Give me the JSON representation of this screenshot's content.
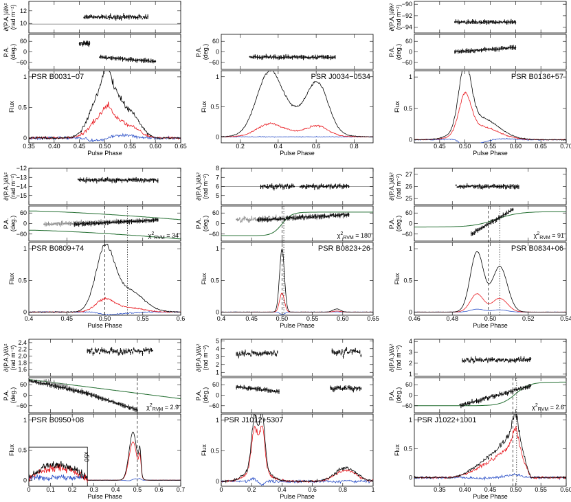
{
  "figure": {
    "x_axis_label": "Pulse Phase",
    "rm_axis_label": "∂(P.A.)/∂λ²",
    "rm_axis_units": "(rad m⁻²)",
    "pa_axis_label": "P.A. (deg.)",
    "flux_axis_label": "Flux",
    "chi2_label": "χ²RVM",
    "inset_scale_label": "x50"
  },
  "colors": {
    "total_intensity": "#000000",
    "linear_polarization": "#e8141a",
    "circular_polarization": "#2e52c8",
    "rvm_fit": "#1f6b2d",
    "pa_grey": "#8c8c8c",
    "reference_line": "#7a7a7a"
  },
  "chart_data": [
    {
      "type": "line",
      "pulsar": "PSR B0031−07",
      "xlim": [
        0.35,
        0.65
      ],
      "x_ticks": [
        "0.35",
        "0.40",
        "0.45",
        "0.50",
        "0.55",
        "0.60",
        "0.65"
      ],
      "rm": {
        "ylim": [
          8.5,
          13.5
        ],
        "y_ticks": [
          "10",
          "12"
        ],
        "reference": 9.9,
        "segments": [
          {
            "x": [
              0.459,
              0.585
            ],
            "y": 11.0,
            "noise": 0.18
          }
        ]
      },
      "pa": {
        "ylim": [
          -100,
          100
        ],
        "y_ticks": [
          "60",
          "0",
          "−60"
        ],
        "segments": [
          {
            "x": [
              0.45,
              0.47
            ],
            "y": [
              50,
              45
            ],
            "noise": 5
          },
          {
            "x": [
              0.49,
              0.6
            ],
            "y": [
              -30,
              -55
            ],
            "noise": 3
          }
        ]
      },
      "flux": {
        "ylim": [
          -0.08,
          1.1
        ],
        "y_ticks": [
          "0",
          "0.5",
          "1"
        ],
        "components": [
          {
            "mu": 0.49,
            "sigma": 0.02,
            "amp": 0.65
          },
          {
            "mu": 0.505,
            "sigma": 0.008,
            "amp": 0.35
          },
          {
            "mu": 0.525,
            "sigma": 0.02,
            "amp": 0.55
          },
          {
            "mu": 0.56,
            "sigma": 0.015,
            "amp": 0.25
          }
        ],
        "linear_fraction": 0.45,
        "circular_fraction": 0.08,
        "noise": 0.05
      },
      "chi2": ""
    },
    {
      "type": "line",
      "pulsar": "PSR J0034−0534",
      "xlim": [
        0.1,
        0.9
      ],
      "x_ticks": [
        "0.2",
        "0.4",
        "0.6",
        "0.8"
      ],
      "rm": null,
      "pa": {
        "ylim": [
          -100,
          100
        ],
        "y_ticks": [
          "60",
          "0",
          "−60"
        ],
        "segments": [
          {
            "x": [
              0.25,
              0.7
            ],
            "y": [
              -30,
              -30
            ],
            "noise": 4
          }
        ]
      },
      "flux": {
        "ylim": [
          -0.1,
          1.1
        ],
        "y_ticks": [
          "0",
          "0.5",
          "1"
        ],
        "components": [
          {
            "mu": 0.35,
            "sigma": 0.065,
            "amp": 0.9
          },
          {
            "mu": 0.61,
            "sigma": 0.055,
            "amp": 0.72
          },
          {
            "mu": 0.48,
            "sigma": 0.12,
            "amp": 0.35
          }
        ],
        "linear_fraction": 0.2,
        "circular_fraction": 0.0,
        "noise": 0.015
      },
      "chi2": ""
    },
    {
      "type": "line",
      "pulsar": "PSR B0136+57",
      "xlim": [
        0.4,
        0.7
      ],
      "x_ticks": [
        "0.45",
        "0.50",
        "0.55",
        "0.60",
        "0.65",
        "0.70"
      ],
      "rm": {
        "ylim": [
          -95,
          -89.5
        ],
        "y_ticks": [
          "−90",
          "−92",
          "−94"
        ],
        "segments": [
          {
            "x": [
              0.48,
              0.6
            ],
            "y": -93.1,
            "noise": 0.12
          }
        ]
      },
      "pa": {
        "ylim": [
          -100,
          100
        ],
        "y_ticks": [
          "60",
          "0",
          "−60"
        ],
        "segments": [
          {
            "x": [
              0.48,
              0.6
            ],
            "y": [
              0,
              25
            ],
            "noise": 4
          }
        ]
      },
      "flux": {
        "ylim": [
          -0.05,
          1.1
        ],
        "y_ticks": [
          "0",
          "0.5",
          "1"
        ],
        "components": [
          {
            "mu": 0.5,
            "sigma": 0.012,
            "amp": 1.0
          },
          {
            "mu": 0.53,
            "sigma": 0.035,
            "amp": 0.35
          }
        ],
        "linear_fraction": 0.6,
        "circular_fraction": 0.15,
        "noise": 0.02
      },
      "chi2": ""
    },
    {
      "type": "line",
      "pulsar": "PSR B0809+74",
      "xlim": [
        0.4,
        0.6
      ],
      "x_ticks": [
        "0.4",
        "0.45",
        "0.50",
        "0.55",
        "0.6"
      ],
      "rm": {
        "ylim": [
          -16,
          -12
        ],
        "y_ticks": [
          "−12",
          "−13",
          "−14",
          "−15"
        ],
        "segments": [
          {
            "x": [
              0.465,
              0.57
            ],
            "y": -13.3,
            "noise": 0.1
          }
        ]
      },
      "pa": {
        "ylim": [
          -100,
          100
        ],
        "y_ticks": [
          "60",
          "0",
          "−60"
        ],
        "segments": [
          {
            "x": [
              0.46,
              0.57
            ],
            "y": [
              -5,
              20
            ],
            "noise": 3
          }
        ],
        "rvm": {
          "curves": [
            {
              "y0": 72,
              "y1": 22
            },
            {
              "y0": -38,
              "y1": -88
            }
          ]
        },
        "markers": [
          0.5,
          0.53
        ]
      },
      "flux": {
        "ylim": [
          -0.05,
          1.1
        ],
        "y_ticks": [
          "0",
          "0.5",
          "1"
        ],
        "components": [
          {
            "mu": 0.5,
            "sigma": 0.012,
            "amp": 0.95
          },
          {
            "mu": 0.53,
            "sigma": 0.02,
            "amp": 0.35
          }
        ],
        "linear_fraction": 0.2,
        "circular_fraction": 0.05,
        "noise": 0.02
      },
      "chi2": "= 34"
    },
    {
      "type": "line",
      "pulsar": "PSR B0823+26",
      "xlim": [
        0.4,
        0.65
      ],
      "x_ticks": [
        "0.4",
        "0.45",
        "0.50",
        "0.55",
        "0.60",
        "0.65"
      ],
      "rm": {
        "ylim": [
          4,
          8
        ],
        "y_ticks": [
          "8",
          "7",
          "6",
          "5"
        ],
        "reference": 6.0,
        "segments": [
          {
            "x": [
              0.465,
              0.52
            ],
            "y": 6.0,
            "noise": 0.15
          },
          {
            "x": [
              0.53,
              0.61
            ],
            "y": 6.0,
            "noise": 0.15
          }
        ]
      },
      "pa": {
        "ylim": [
          -100,
          100
        ],
        "y_ticks": [
          "60",
          "0",
          "−60"
        ],
        "segments": [
          {
            "x": [
              0.46,
              0.61
            ],
            "y": [
              20,
              50
            ],
            "noise": 6
          }
        ],
        "rvm": {
          "center": 0.5,
          "width": 0.008,
          "lo": -70,
          "hi": 65
        },
        "markers": [
          0.5,
          0.503
        ]
      },
      "flux": {
        "ylim": [
          -0.05,
          1.1
        ],
        "y_ticks": [
          "0",
          "0.5",
          "1"
        ],
        "components": [
          {
            "mu": 0.5,
            "sigma": 0.004,
            "amp": 1.0
          },
          {
            "mu": 0.59,
            "sigma": 0.006,
            "amp": 0.05
          }
        ],
        "linear_fraction": 0.3,
        "circular_fraction": 0.05,
        "noise": 0.005
      },
      "chi2": "= 180"
    },
    {
      "type": "line",
      "pulsar": "PSR B0834+06",
      "xlim": [
        0.46,
        0.54
      ],
      "x_ticks": [
        "0.46",
        "0.48",
        "0.50",
        "0.52",
        "0.54"
      ],
      "rm": {
        "ylim": [
          24.5,
          27.5
        ],
        "y_ticks": [
          "27",
          "26",
          "25"
        ],
        "segments": [
          {
            "x": [
              0.482,
              0.515
            ],
            "y": 26.0,
            "noise": 0.06
          }
        ]
      },
      "pa": {
        "ylim": [
          -100,
          100
        ],
        "y_ticks": [
          "60",
          "0",
          "−60"
        ],
        "segments": [
          {
            "x": [
              0.49,
              0.512
            ],
            "y": [
              -60,
              80
            ],
            "noise": 4
          }
        ],
        "rvm": {
          "center": 0.503,
          "width": 0.006,
          "lo": -20,
          "hi": 68
        },
        "markers": [
          0.499,
          0.505
        ]
      },
      "flux": {
        "ylim": [
          -0.05,
          1.1
        ],
        "y_ticks": [
          "0",
          "0.5",
          "1"
        ],
        "components": [
          {
            "mu": 0.493,
            "sigma": 0.0035,
            "amp": 0.95
          },
          {
            "mu": 0.505,
            "sigma": 0.004,
            "amp": 0.72
          }
        ],
        "linear_fraction": 0.3,
        "circular_fraction": 0.05,
        "noise": 0.005
      },
      "chi2": "= 91"
    },
    {
      "type": "line",
      "pulsar": "PSR B0950+08",
      "xlim": [
        0,
        0.7
      ],
      "x_ticks": [
        "0",
        "0.1",
        "0.2",
        "0.3",
        "0.4",
        "0.5",
        "0.6",
        "0.7"
      ],
      "rm": {
        "ylim": [
          1.4,
          2.5
        ],
        "y_ticks": [
          "2.4",
          "2.2",
          "2.0",
          "1.8",
          "1.6"
        ],
        "segments": [
          {
            "x": [
              0.27,
              0.57
            ],
            "y": 2.15,
            "noise": 0.06
          }
        ]
      },
      "pa": {
        "ylim": [
          -100,
          100
        ],
        "y_ticks": [
          "60",
          "0",
          "−60"
        ],
        "segments": [
          {
            "x": [
              0.0,
              0.27
            ],
            "y": [
              85,
              10
            ],
            "noise": 5
          },
          {
            "x": [
              0.27,
              0.5
            ],
            "y": [
              10,
              -85
            ],
            "noise": 3
          }
        ],
        "rvm": {
          "linear": [
            [
              0.0,
              90
            ],
            [
              0.7,
              -20
            ]
          ]
        },
        "markers": [
          0.5
        ]
      },
      "flux": {
        "ylim": [
          -0.1,
          1.1
        ],
        "y_ticks": [
          "0",
          "0.5",
          "1"
        ],
        "components": [
          {
            "mu": 0.48,
            "sigma": 0.018,
            "amp": 0.8
          },
          {
            "mu": 0.512,
            "sigma": 0.005,
            "amp": 0.4
          }
        ],
        "linear_fraction": 0.8,
        "circular_fraction": 0.05,
        "noise": 0.004,
        "inset": {
          "x": [
            0.0,
            0.27
          ],
          "level": 0.3,
          "noise": 0.05
        }
      },
      "chi2": "= 2.9"
    },
    {
      "type": "line",
      "pulsar": "PSR J1012+5307",
      "xlim": [
        0,
        1
      ],
      "x_ticks": [
        "0",
        "0.2",
        "0.4",
        "0.6",
        "0.8",
        "1"
      ],
      "rm": {
        "ylim": [
          0.5,
          5.2
        ],
        "y_ticks": [
          "5",
          "4",
          "3",
          "2",
          "1"
        ],
        "segments": [
          {
            "x": [
              0.1,
              0.37
            ],
            "y": 3.4,
            "noise": 0.25
          },
          {
            "x": [
              0.73,
              0.92
            ],
            "y": 3.6,
            "noise": 0.4
          }
        ]
      },
      "pa": {
        "ylim": [
          -100,
          100
        ],
        "y_ticks": [
          "60",
          "0",
          "−60"
        ],
        "segments": [
          {
            "x": [
              0.1,
              0.38
            ],
            "y": [
              50,
              20
            ],
            "noise": 5
          },
          {
            "x": [
              0.72,
              0.92
            ],
            "y": [
              40,
              40
            ],
            "noise": 8
          }
        ]
      },
      "flux": {
        "ylim": [
          -0.08,
          1.1
        ],
        "y_ticks": [
          "0",
          "0.5",
          "1"
        ],
        "components": [
          {
            "mu": 0.22,
            "sigma": 0.02,
            "amp": 0.85
          },
          {
            "mu": 0.27,
            "sigma": 0.017,
            "amp": 0.85
          },
          {
            "mu": 0.24,
            "sigma": 0.07,
            "amp": 0.25
          },
          {
            "mu": 0.82,
            "sigma": 0.07,
            "amp": 0.22
          }
        ],
        "linear_fraction": 0.8,
        "circular_fraction": 0.05,
        "noise": 0.05
      },
      "chi2": ""
    },
    {
      "type": "line",
      "pulsar": "PSR J1022+1001",
      "xlim": [
        0.3,
        0.6
      ],
      "x_ticks": [
        "0.35",
        "0.40",
        "0.45",
        "0.50",
        "0.55",
        "0.60"
      ],
      "rm": {
        "ylim": [
          0.8,
          4.2
        ],
        "y_ticks": [
          "4",
          "3",
          "2",
          "1"
        ],
        "segments": [
          {
            "x": [
              0.395,
              0.53
            ],
            "y": 2.3,
            "noise": 0.12
          }
        ]
      },
      "pa": {
        "ylim": [
          -100,
          100
        ],
        "y_ticks": [
          "60",
          "0",
          "−60"
        ],
        "segments": [
          {
            "x": [
              0.39,
              0.53
            ],
            "y": [
              -60,
              55
            ],
            "noise": 6
          }
        ],
        "rvm": {
          "center": 0.5,
          "width": 0.014,
          "lo": -60,
          "hi": 75
        },
        "markers": [
          0.495,
          0.502
        ]
      },
      "flux": {
        "ylim": [
          -0.15,
          1.1
        ],
        "y_ticks": [
          "0",
          "0.5",
          "1"
        ],
        "ramp": {
          "start": 0.37,
          "peak": 0.5,
          "end": 0.53,
          "amp": 0.85
        },
        "components": [
          {
            "mu": 0.5,
            "sigma": 0.006,
            "amp": 0.3
          }
        ],
        "linear_fraction": 0.75,
        "circular_fraction": 0.05,
        "noise": 0.05
      },
      "chi2": "= 2.6"
    }
  ]
}
